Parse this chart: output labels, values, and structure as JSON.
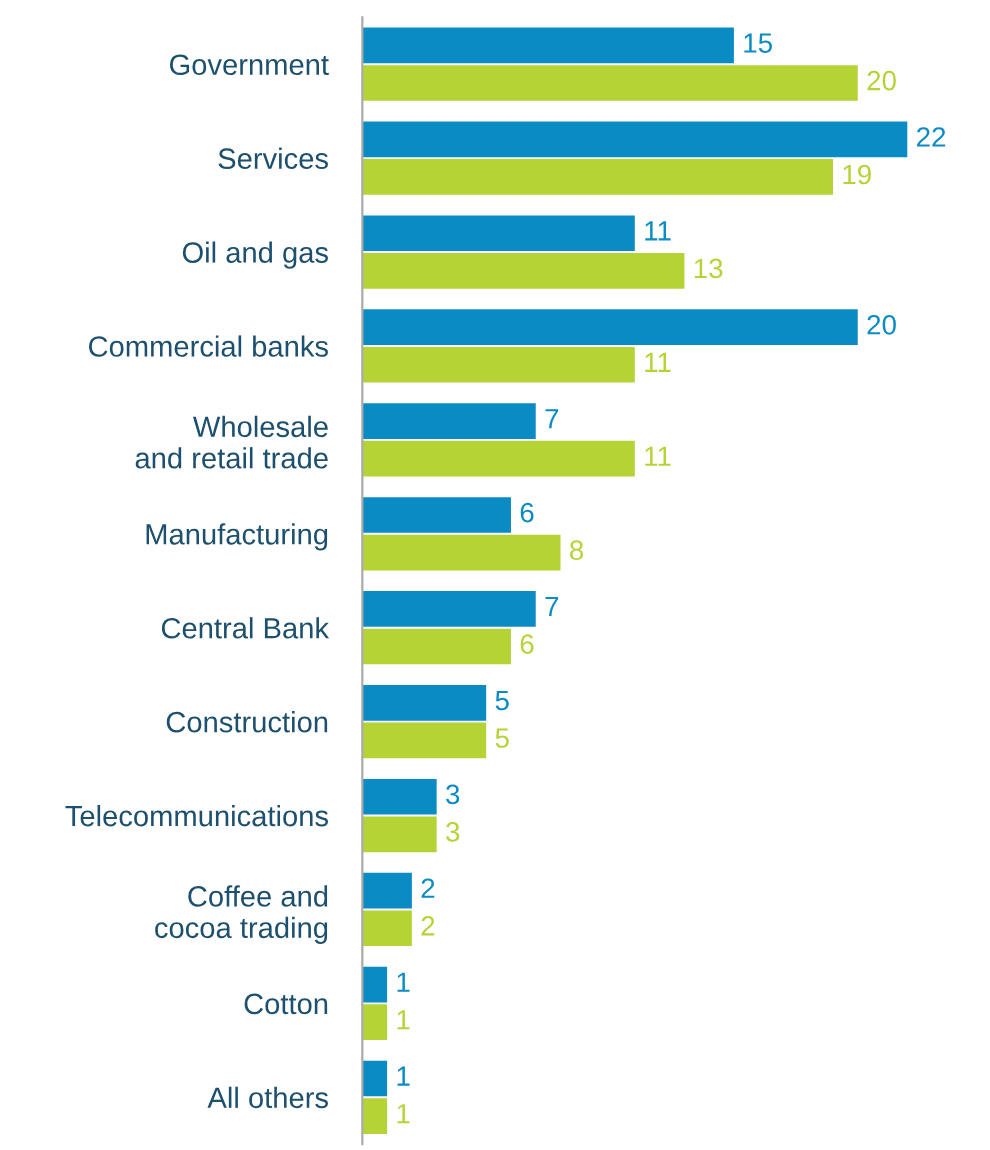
{
  "chart_data": {
    "type": "bar",
    "orientation": "horizontal",
    "data_labels": true,
    "categories": [
      "Government",
      "Services",
      "Oil and gas",
      "Commercial banks",
      "Wholesale\nand retail trade",
      "Manufacturing",
      "Central Bank",
      "Construction",
      "Telecommunications",
      "Coffee and\ncocoa trading",
      "Cotton",
      "All others"
    ],
    "series": [
      {
        "color": "#0a8bc4",
        "values": [
          15,
          22,
          11,
          20,
          7,
          6,
          7,
          5,
          3,
          2,
          1,
          1
        ]
      },
      {
        "color": "#b5d334",
        "values": [
          20,
          19,
          13,
          11,
          11,
          8,
          6,
          5,
          3,
          2,
          1,
          1
        ]
      }
    ]
  }
}
